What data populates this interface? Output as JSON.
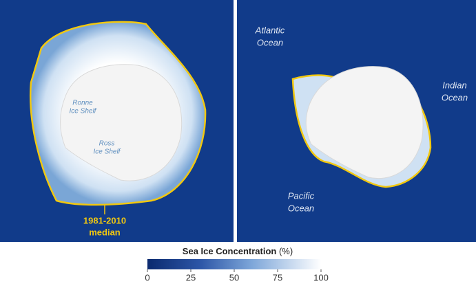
{
  "maps": {
    "left": {
      "labels": {
        "ronne": [
          "Ronne",
          "Ice Shelf"
        ],
        "ross": [
          "Ross",
          "Ice Shelf"
        ],
        "median": [
          "1981-2010",
          "median"
        ]
      }
    },
    "right": {
      "labels": {
        "atlantic": [
          "Atlantic",
          "Ocean"
        ],
        "indian": [
          "Indian",
          "Ocean"
        ],
        "pacific": [
          "Pacific",
          "Ocean"
        ]
      }
    }
  },
  "colorbar": {
    "title": "Sea Ice Concentration",
    "unit": "(%)",
    "range": [
      0,
      100
    ],
    "ticks": [
      0,
      25,
      50,
      75,
      100
    ]
  }
}
